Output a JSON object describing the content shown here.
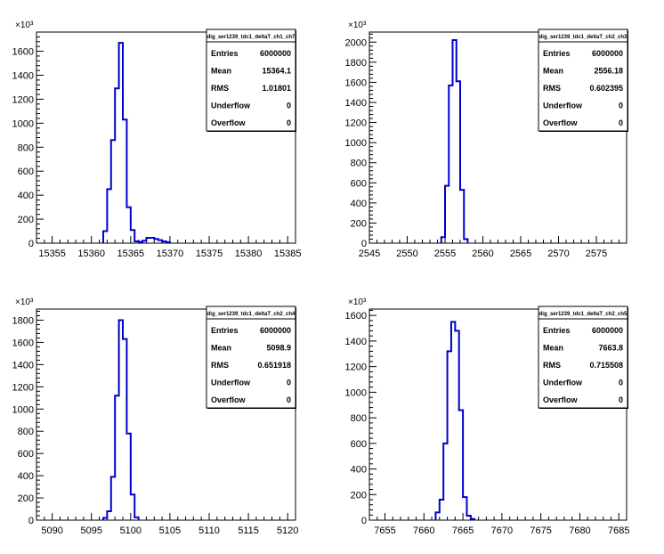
{
  "chart_data": [
    {
      "type": "histogram",
      "stats_title": "dig_ser1239_tdc1_deltaT_ch1_ch7",
      "exponent_label": "×10³",
      "stats": [
        {
          "label": "Entries",
          "value": "6000000"
        },
        {
          "label": "Mean",
          "value": "15364.1"
        },
        {
          "label": "RMS",
          "value": "1.01801"
        },
        {
          "label": "Underflow",
          "value": "0"
        },
        {
          "label": "Overflow",
          "value": "0"
        }
      ],
      "xlim": [
        15353,
        15386
      ],
      "ylim": [
        0,
        1760
      ],
      "xticks": [
        15355,
        15360,
        15365,
        15370,
        15375,
        15380,
        15385
      ],
      "yticks": [
        0,
        200,
        400,
        600,
        800,
        1000,
        1200,
        1400,
        1600
      ],
      "bins": [
        {
          "x0": 15361.5,
          "x1": 15362.0,
          "y": 100
        },
        {
          "x0": 15362.0,
          "x1": 15362.5,
          "y": 450
        },
        {
          "x0": 15362.5,
          "x1": 15363.0,
          "y": 860
        },
        {
          "x0": 15363.0,
          "x1": 15363.5,
          "y": 1290
        },
        {
          "x0": 15363.5,
          "x1": 15364.0,
          "y": 1670
        },
        {
          "x0": 15364.0,
          "x1": 15364.5,
          "y": 1030
        },
        {
          "x0": 15364.5,
          "x1": 15365.0,
          "y": 300
        },
        {
          "x0": 15365.0,
          "x1": 15365.5,
          "y": 110
        },
        {
          "x0": 15365.5,
          "x1": 15366.0,
          "y": 15
        },
        {
          "x0": 15366.0,
          "x1": 15366.5,
          "y": 10
        },
        {
          "x0": 15366.5,
          "x1": 15367.0,
          "y": 20
        },
        {
          "x0": 15367.0,
          "x1": 15367.5,
          "y": 45
        },
        {
          "x0": 15367.5,
          "x1": 15368.0,
          "y": 45
        },
        {
          "x0": 15368.0,
          "x1": 15368.5,
          "y": 35
        },
        {
          "x0": 15368.5,
          "x1": 15369.0,
          "y": 25
        },
        {
          "x0": 15369.0,
          "x1": 15369.5,
          "y": 15
        },
        {
          "x0": 15369.5,
          "x1": 15370.0,
          "y": 8
        }
      ]
    },
    {
      "type": "histogram",
      "stats_title": "dig_ser1239_tdc1_deltaT_ch2_ch3",
      "exponent_label": "×10³",
      "stats": [
        {
          "label": "Entries",
          "value": "6000000"
        },
        {
          "label": "Mean",
          "value": "2556.18"
        },
        {
          "label": "RMS",
          "value": "0.602395"
        },
        {
          "label": "Underflow",
          "value": "0"
        },
        {
          "label": "Overflow",
          "value": "0"
        }
      ],
      "xlim": [
        2545,
        2579
      ],
      "ylim": [
        0,
        2100
      ],
      "xticks": [
        2545,
        2550,
        2555,
        2560,
        2565,
        2570,
        2575
      ],
      "yticks": [
        0,
        200,
        400,
        600,
        800,
        1000,
        1200,
        1400,
        1600,
        1800,
        2000
      ],
      "bins": [
        {
          "x0": 2554.5,
          "x1": 2555.0,
          "y": 60
        },
        {
          "x0": 2555.0,
          "x1": 2555.5,
          "y": 570
        },
        {
          "x0": 2555.5,
          "x1": 2556.0,
          "y": 1570
        },
        {
          "x0": 2556.0,
          "x1": 2556.5,
          "y": 2020
        },
        {
          "x0": 2556.5,
          "x1": 2557.0,
          "y": 1610
        },
        {
          "x0": 2557.0,
          "x1": 2557.5,
          "y": 530
        },
        {
          "x0": 2557.5,
          "x1": 2558.0,
          "y": 40
        }
      ]
    },
    {
      "type": "histogram",
      "stats_title": "dig_ser1239_tdc1_deltaT_ch2_ch4",
      "exponent_label": "×10³",
      "stats": [
        {
          "label": "Entries",
          "value": "6000000"
        },
        {
          "label": "Mean",
          "value": "5098.9"
        },
        {
          "label": "RMS",
          "value": "0.651918"
        },
        {
          "label": "Underflow",
          "value": "0"
        },
        {
          "label": "Overflow",
          "value": "0"
        }
      ],
      "xlim": [
        5088,
        5121
      ],
      "ylim": [
        0,
        1900
      ],
      "xticks": [
        5090,
        5095,
        5100,
        5105,
        5110,
        5115,
        5120
      ],
      "yticks": [
        0,
        200,
        400,
        600,
        800,
        1000,
        1200,
        1400,
        1600,
        1800
      ],
      "bins": [
        {
          "x0": 5096.5,
          "x1": 5097.0,
          "y": 20
        },
        {
          "x0": 5097.0,
          "x1": 5097.5,
          "y": 80
        },
        {
          "x0": 5097.5,
          "x1": 5098.0,
          "y": 390
        },
        {
          "x0": 5098.0,
          "x1": 5098.5,
          "y": 1120
        },
        {
          "x0": 5098.5,
          "x1": 5099.0,
          "y": 1800
        },
        {
          "x0": 5099.0,
          "x1": 5099.5,
          "y": 1630
        },
        {
          "x0": 5099.5,
          "x1": 5100.0,
          "y": 780
        },
        {
          "x0": 5100.0,
          "x1": 5100.5,
          "y": 230
        },
        {
          "x0": 5100.5,
          "x1": 5101.0,
          "y": 25
        }
      ]
    },
    {
      "type": "histogram",
      "stats_title": "dig_ser1239_tdc1_deltaT_ch2_ch5",
      "exponent_label": "×10³",
      "stats": [
        {
          "label": "Entries",
          "value": "6000000"
        },
        {
          "label": "Mean",
          "value": "7663.8"
        },
        {
          "label": "RMS",
          "value": "0.715508"
        },
        {
          "label": "Underflow",
          "value": "0"
        },
        {
          "label": "Overflow",
          "value": "0"
        }
      ],
      "xlim": [
        7653,
        7686
      ],
      "ylim": [
        0,
        1650
      ],
      "xticks": [
        7655,
        7660,
        7665,
        7670,
        7675,
        7680,
        7685
      ],
      "yticks": [
        0,
        200,
        400,
        600,
        800,
        1000,
        1200,
        1400,
        1600
      ],
      "bins": [
        {
          "x0": 7661.5,
          "x1": 7662.0,
          "y": 60
        },
        {
          "x0": 7662.0,
          "x1": 7662.5,
          "y": 160
        },
        {
          "x0": 7662.5,
          "x1": 7663.0,
          "y": 600
        },
        {
          "x0": 7663.0,
          "x1": 7663.5,
          "y": 1320
        },
        {
          "x0": 7663.5,
          "x1": 7664.0,
          "y": 1550
        },
        {
          "x0": 7664.0,
          "x1": 7664.5,
          "y": 1480
        },
        {
          "x0": 7664.5,
          "x1": 7665.0,
          "y": 860
        },
        {
          "x0": 7665.0,
          "x1": 7665.5,
          "y": 180
        },
        {
          "x0": 7665.5,
          "x1": 7666.0,
          "y": 35
        },
        {
          "x0": 7666.0,
          "x1": 7666.5,
          "y": 10
        }
      ]
    }
  ],
  "style": {
    "line_color": "#0000cc",
    "axis_color": "#000000",
    "background": "#ffffff"
  }
}
